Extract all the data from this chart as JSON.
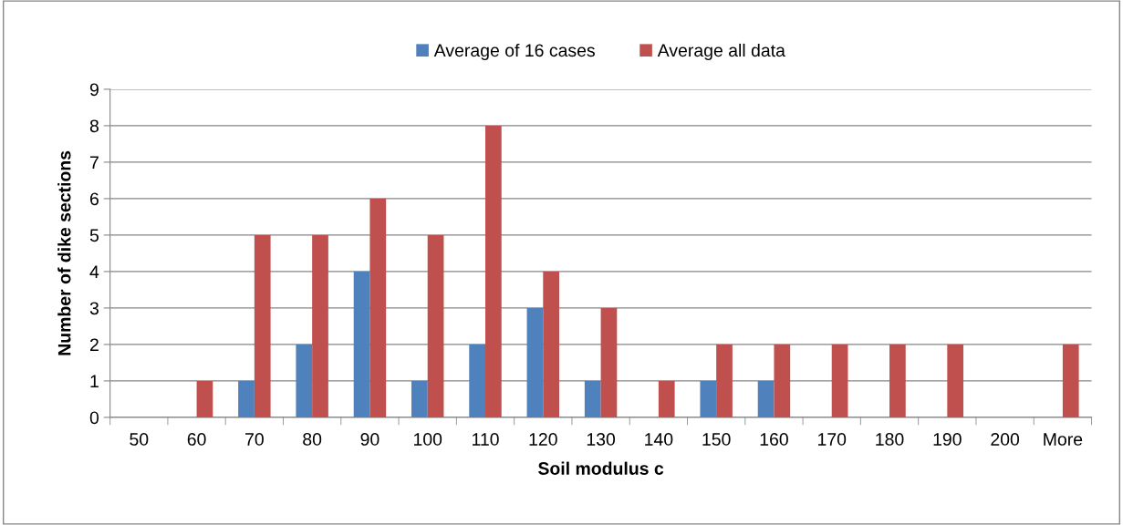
{
  "chart_data": {
    "type": "bar",
    "xlabel": "Soil modulus c",
    "ylabel": "Number of dike sections",
    "categories": [
      "50",
      "60",
      "70",
      "80",
      "90",
      "100",
      "110",
      "120",
      "130",
      "140",
      "150",
      "160",
      "170",
      "180",
      "190",
      "200",
      "More"
    ],
    "series": [
      {
        "name": "Average of 16 cases",
        "color": "#4f81bd",
        "values": [
          0,
          0,
          1,
          2,
          4,
          1,
          2,
          3,
          1,
          0,
          1,
          1,
          0,
          0,
          0,
          0,
          0
        ]
      },
      {
        "name": "Average all data",
        "color": "#c0504d",
        "values": [
          0,
          1,
          5,
          5,
          6,
          5,
          8,
          4,
          3,
          1,
          2,
          2,
          2,
          2,
          2,
          0,
          2
        ]
      }
    ],
    "ylim": [
      0,
      9
    ],
    "yticks": [
      0,
      1,
      2,
      3,
      4,
      5,
      6,
      7,
      8,
      9
    ],
    "grid": "y",
    "legend": "top"
  }
}
